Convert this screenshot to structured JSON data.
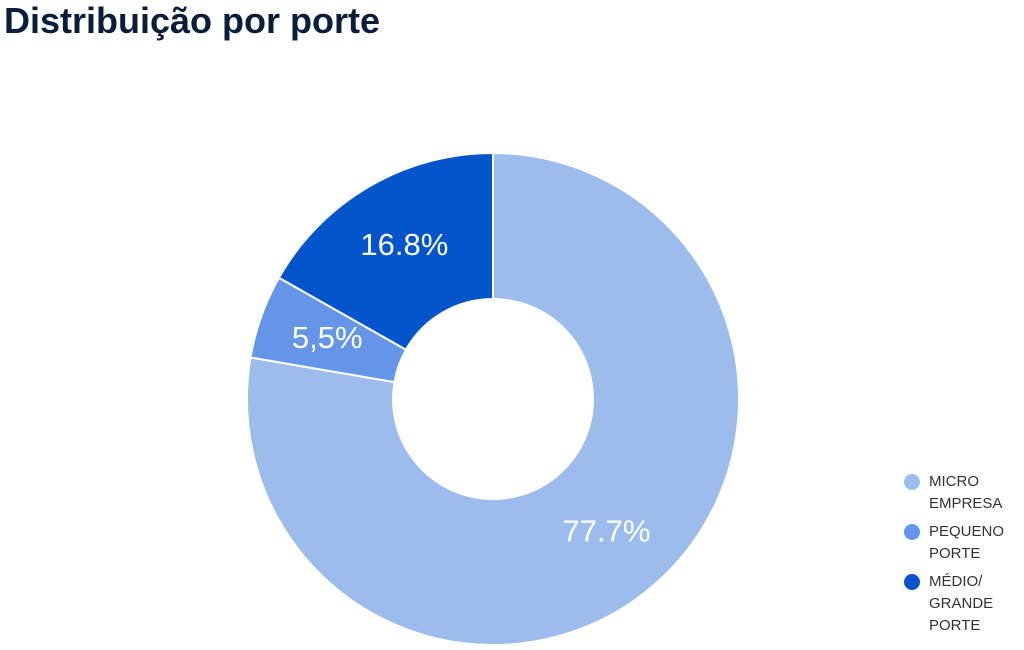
{
  "chart_data": {
    "type": "donut",
    "title": "Distribuição por porte",
    "categories": [
      "MICRO EMPRESA",
      "PEQUENO PORTE",
      "MÉDIO/ GRANDE PORTE"
    ],
    "values": [
      77.7,
      5.5,
      16.8
    ],
    "value_labels": [
      "77.7%",
      "5,5%",
      "16.8%"
    ],
    "colors": [
      "#9bbcec",
      "#6495e8",
      "#0455cc"
    ],
    "legend": "right"
  }
}
